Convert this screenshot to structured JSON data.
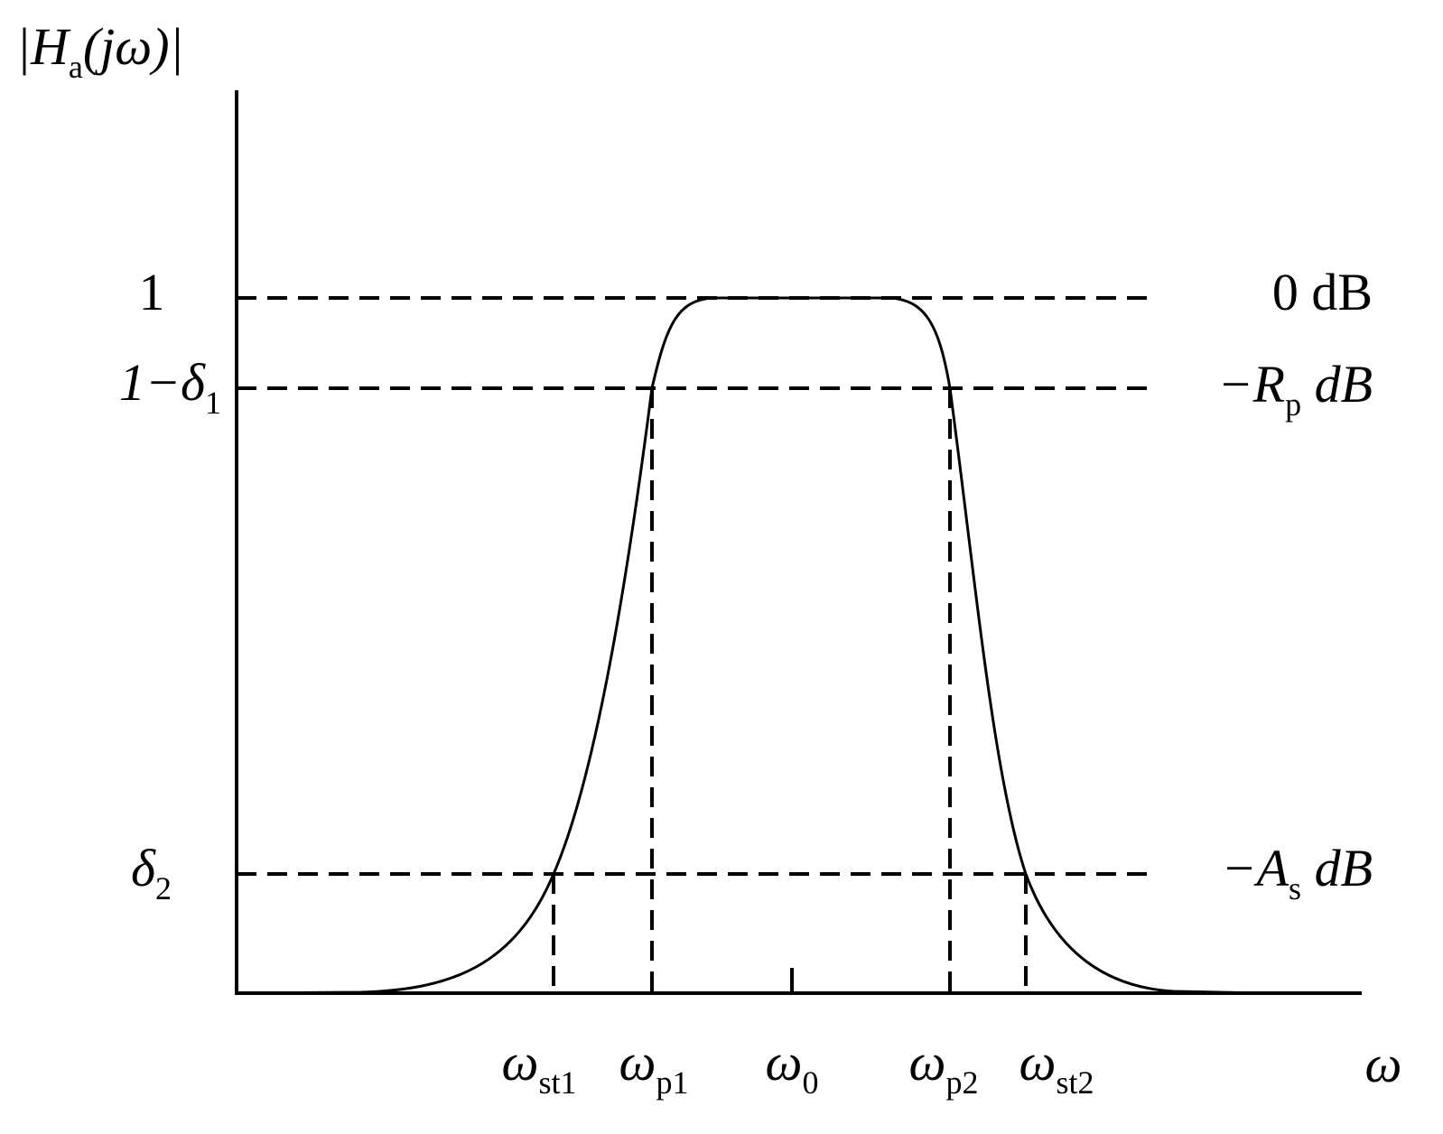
{
  "y_axis_label": {
    "text": "|H",
    "sub": "a",
    "after": "(jω)|"
  },
  "x_axis_label": {
    "text": "ω"
  },
  "left_labels": [
    {
      "text": "1"
    },
    {
      "text": "1−δ",
      "sub": "1"
    },
    {
      "text": "δ",
      "sub": "2"
    }
  ],
  "right_labels": [
    {
      "text": "0 dB"
    },
    {
      "text": "−R",
      "sub": "p",
      "after": " dB"
    },
    {
      "text": "−A",
      "sub": "s",
      "after": " dB"
    }
  ],
  "bottom_labels": [
    {
      "text": "ω",
      "sub": "st1"
    },
    {
      "text": "ω",
      "sub": "p1"
    },
    {
      "text": "ω",
      "sub": "0"
    },
    {
      "text": "ω",
      "sub": "p2"
    },
    {
      "text": "ω",
      "sub": "st2"
    }
  ]
}
